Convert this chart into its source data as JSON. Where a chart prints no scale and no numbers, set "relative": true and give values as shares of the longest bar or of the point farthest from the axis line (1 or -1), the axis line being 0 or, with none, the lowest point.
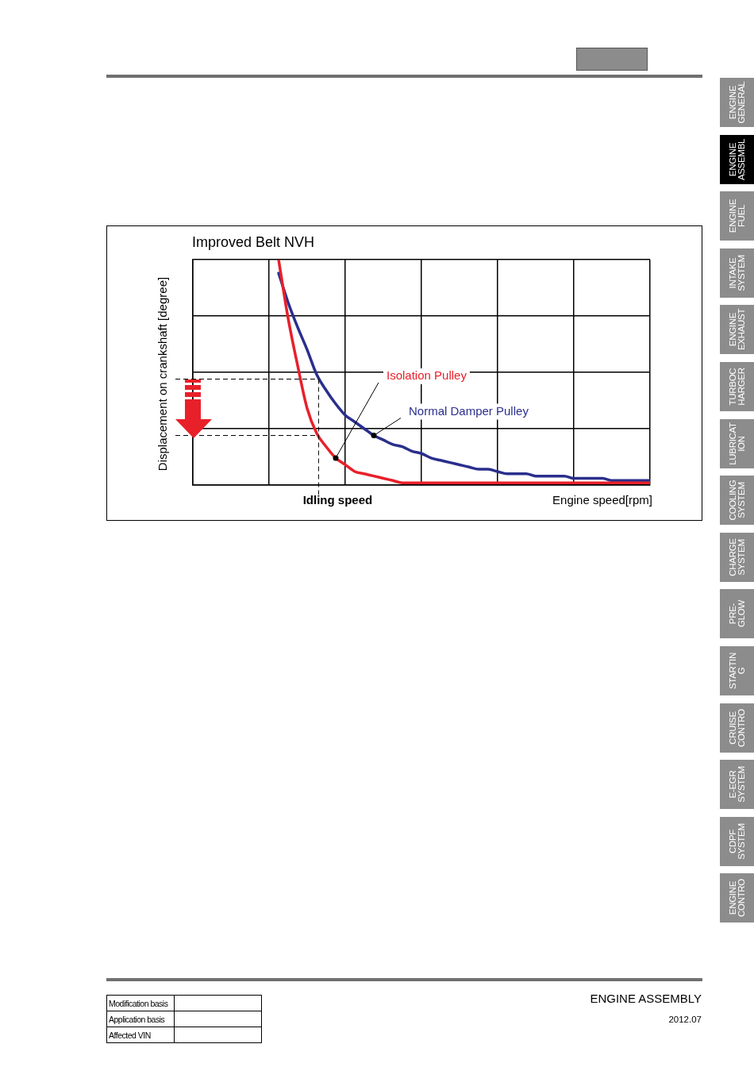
{
  "chart_data": {
    "type": "line",
    "title": "Improved Belt NVH",
    "xlabel": "Engine speed[rpm]",
    "ylabel": "Displacement on crankshaft [degree]",
    "relative": true,
    "grid": true,
    "legend": false,
    "marker": "none",
    "line_style": "solid",
    "categories": [
      null,
      null,
      null,
      null,
      null,
      null,
      null,
      null,
      null,
      null,
      null,
      null,
      null,
      null,
      null,
      null,
      null,
      null,
      null,
      null,
      null,
      null,
      null,
      null,
      null,
      null,
      null,
      null,
      null,
      null,
      null,
      null,
      null,
      null,
      null,
      null,
      null,
      null,
      null,
      null,
      null,
      null,
      null,
      null,
      null,
      null,
      null,
      null,
      null
    ],
    "series": [
      {
        "name": "Isolation Pulley",
        "color": "#e8202a",
        "values": [
          null,
          null,
          null,
          null,
          null,
          null,
          null,
          null,
          null,
          1.0,
          0.74,
          0.53,
          0.34,
          0.23,
          0.17,
          0.12,
          0.09,
          0.06,
          0.05,
          0.04,
          0.03,
          0.02,
          0.01,
          0.01,
          0.01,
          0.01,
          0.01,
          0.01,
          0.01,
          0.01,
          0.01,
          0.01,
          0.01,
          0.01,
          0.01,
          0.01,
          0.01,
          0.01,
          0.01,
          0.01,
          0.01,
          0.01,
          0.01,
          0.01,
          0.01,
          0.01,
          0.01,
          0.01,
          0.01
        ]
      },
      {
        "name": "Normal Damper Pulley",
        "color": "#2a2f8c",
        "values": [
          null,
          null,
          null,
          null,
          null,
          null,
          null,
          null,
          null,
          0.94,
          0.81,
          0.7,
          0.6,
          0.49,
          0.42,
          0.36,
          0.31,
          0.28,
          0.25,
          0.22,
          0.2,
          0.18,
          0.17,
          0.15,
          0.14,
          0.12,
          0.11,
          0.1,
          0.09,
          0.08,
          0.07,
          0.07,
          0.06,
          0.05,
          0.05,
          0.05,
          0.04,
          0.04,
          0.04,
          0.04,
          0.03,
          0.03,
          0.03,
          0.03,
          0.02,
          0.02,
          0.02,
          0.02,
          0.02
        ]
      }
    ],
    "ref_lines": [
      {
        "axis": "y",
        "value": 0.47,
        "line_style": "dashed"
      },
      {
        "axis": "y",
        "value": 0.22,
        "line_style": "dashed"
      }
    ],
    "annotations": [
      "Idling speed",
      "ENGINE\nGENERAL",
      "ENGINE\nASSEMBL",
      "ENGINE\nFUEL",
      "INTAKE\nSYSTEM",
      "ENGINE\nEXHAUST",
      "TURBOC\nHARGER",
      "LUBRICAT\nION",
      "COOLING\nSYSTEM",
      "CHARGE\nSYSTEM",
      "PRE-\nGLOW",
      "STARTIN\nG",
      "CRUISE\nCONTRO",
      "E-EGR\nSYSTEM",
      "CDPF\nSYSTEM",
      "ENGINE\nCONTRO",
      "ENGINE ASSEMBLY",
      "2012.07",
      "Modification basis",
      "Application basis",
      "Affected VIN"
    ]
  }
}
